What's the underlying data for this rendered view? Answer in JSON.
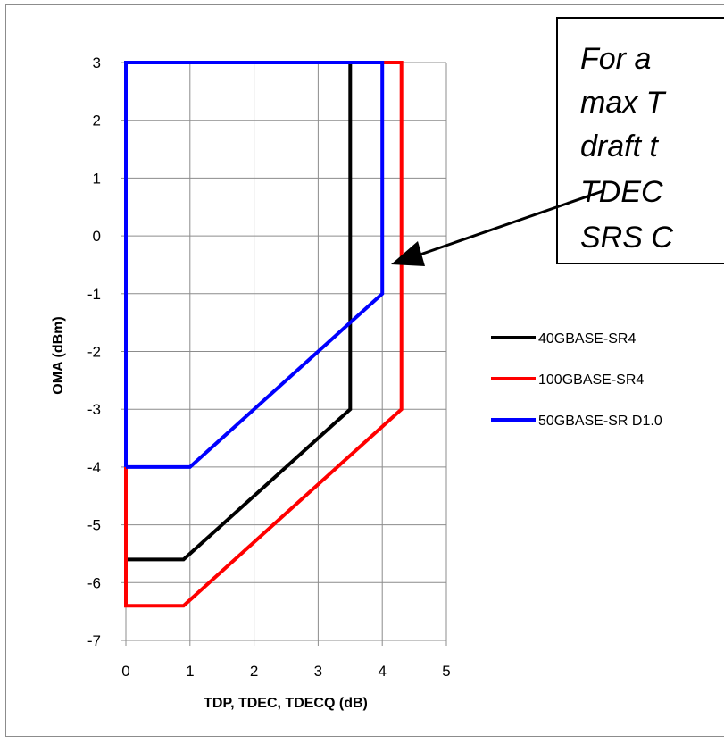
{
  "chart_data": {
    "type": "line",
    "xlabel": "TDP, TDEC, TDECQ (dB)",
    "ylabel": "OMA (dBm)",
    "xlim": [
      0,
      5
    ],
    "ylim": [
      -7,
      3
    ],
    "x_ticks": [
      "0",
      "1",
      "2",
      "3",
      "4",
      "5"
    ],
    "y_ticks": [
      "3",
      "2",
      "1",
      "0",
      "-1",
      "-2",
      "-3",
      "-4",
      "-5",
      "-6",
      "-7"
    ],
    "grid": true,
    "legend_position": "right",
    "series": [
      {
        "name": "40GBASE-SR4",
        "color": "#000000",
        "points": [
          [
            0,
            -5.6
          ],
          [
            0.9,
            -5.6
          ],
          [
            3.5,
            -3
          ],
          [
            3.5,
            3
          ]
        ]
      },
      {
        "name": "100GBASE-SR4",
        "color": "#ff0000",
        "points": [
          [
            0,
            -4
          ],
          [
            0,
            -6.4
          ],
          [
            0.9,
            -6.4
          ],
          [
            4.3,
            -3
          ],
          [
            4.3,
            3
          ],
          [
            4.0,
            3
          ]
        ]
      },
      {
        "name": "50GBASE-SR D1.0",
        "color": "#0000ff",
        "points": [
          [
            0,
            -4
          ],
          [
            0,
            3
          ],
          [
            4.0,
            3
          ],
          [
            4.0,
            -1
          ],
          [
            1.0,
            -4
          ],
          [
            0,
            -4
          ]
        ]
      }
    ],
    "annotation": {
      "lines": [
        "For a",
        "max T",
        "draft t",
        "TDEC",
        "SRS C"
      ]
    }
  }
}
